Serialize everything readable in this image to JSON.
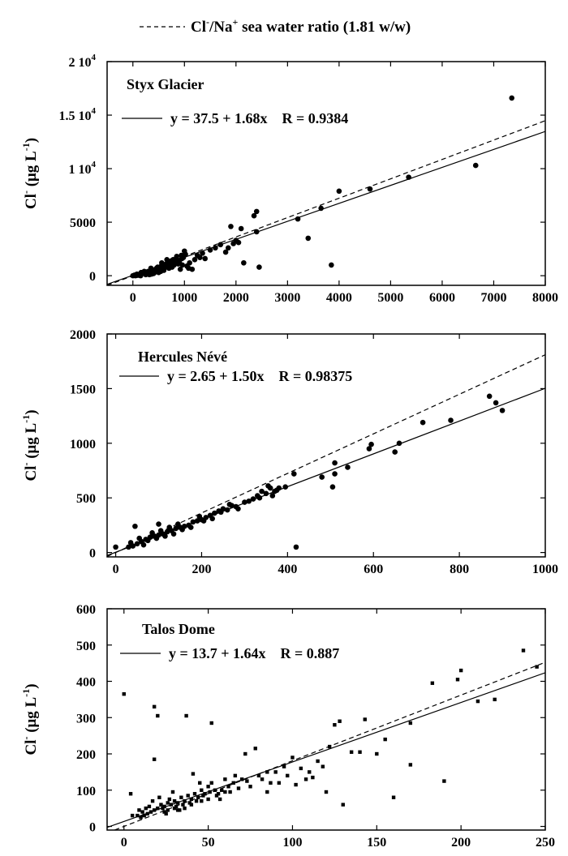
{
  "legend_top": {
    "label_cl": "Cl",
    "label_cl_sup": "-",
    "label_na": "/Na",
    "label_na_sup": "+",
    "label_rest": " sea water ratio (1.81 w/w)"
  },
  "chart_data": [
    {
      "type": "scatter",
      "title": "Styx Glacier",
      "ylabel_main": "Cl",
      "ylabel_sup1": "-",
      "ylabel_units": " (μg L",
      "ylabel_sup2": "-1",
      "ylabel_close": ")",
      "fit_text": "y = 37.5 + 1.68x    R = 0.9384",
      "fit": {
        "intercept": 37.5,
        "slope": 1.68
      },
      "seawater_slope": 1.81,
      "xlim": [
        -500,
        8000
      ],
      "ylim": [
        -900,
        20000
      ],
      "xticks": [
        0,
        1000,
        2000,
        3000,
        4000,
        5000,
        6000,
        7000,
        8000
      ],
      "xtick_labels": [
        "0",
        "1000",
        "2000",
        "3000",
        "4000",
        "5000",
        "6000",
        "7000",
        "8000"
      ],
      "yticks": [
        0,
        5000,
        10000,
        15000,
        20000
      ],
      "ytick_labels": [
        "0",
        "5000",
        "1 10",
        "1.5 10",
        "2 10"
      ],
      "ytick_sup": [
        "",
        "",
        "4",
        "4",
        "4"
      ],
      "points": [
        [
          7350,
          16600
        ],
        [
          6650,
          10300
        ],
        [
          5350,
          9200
        ],
        [
          4600,
          8100
        ],
        [
          4000,
          7900
        ],
        [
          3650,
          6300
        ],
        [
          3200,
          5300
        ],
        [
          3400,
          3500
        ],
        [
          3850,
          1000
        ],
        [
          2400,
          6000
        ],
        [
          2350,
          5600
        ],
        [
          2400,
          4100
        ],
        [
          2100,
          4400
        ],
        [
          1900,
          4600
        ],
        [
          2000,
          3300
        ],
        [
          1950,
          3000
        ],
        [
          1800,
          2200
        ],
        [
          2450,
          800
        ],
        [
          2150,
          1200
        ],
        [
          1700,
          2900
        ],
        [
          1500,
          2400
        ],
        [
          1350,
          2100
        ],
        [
          1300,
          1700
        ],
        [
          1200,
          1500
        ],
        [
          1100,
          1200
        ],
        [
          1050,
          900
        ],
        [
          1000,
          2300
        ],
        [
          950,
          1600
        ],
        [
          900,
          1300
        ],
        [
          850,
          1800
        ],
        [
          800,
          1000
        ],
        [
          750,
          1400
        ],
        [
          700,
          700
        ],
        [
          650,
          1100
        ],
        [
          600,
          500
        ],
        [
          550,
          900
        ],
        [
          500,
          300
        ],
        [
          450,
          600
        ],
        [
          400,
          200
        ],
        [
          350,
          700
        ],
        [
          300,
          400
        ],
        [
          250,
          100
        ],
        [
          200,
          300
        ],
        [
          150,
          0
        ],
        [
          100,
          100
        ],
        [
          50,
          0
        ],
        [
          80,
          150
        ],
        [
          120,
          50
        ],
        [
          180,
          200
        ],
        [
          220,
          400
        ],
        [
          280,
          250
        ],
        [
          320,
          100
        ],
        [
          380,
          500
        ],
        [
          420,
          300
        ],
        [
          480,
          800
        ],
        [
          520,
          600
        ],
        [
          580,
          1000
        ],
        [
          620,
          750
        ],
        [
          680,
          1250
        ],
        [
          720,
          900
        ],
        [
          780,
          1500
        ],
        [
          820,
          1300
        ],
        [
          880,
          1100
        ],
        [
          920,
          600
        ],
        [
          980,
          1700
        ],
        [
          1020,
          2000
        ],
        [
          1080,
          700
        ],
        [
          1150,
          600
        ],
        [
          1250,
          1900
        ],
        [
          1400,
          1600
        ],
        [
          0,
          0
        ],
        [
          30,
          50
        ],
        [
          60,
          80
        ],
        [
          90,
          40
        ],
        [
          140,
          120
        ],
        [
          160,
          300
        ],
        [
          240,
          180
        ],
        [
          260,
          350
        ],
        [
          340,
          300
        ],
        [
          360,
          150
        ],
        [
          440,
          450
        ],
        [
          460,
          700
        ],
        [
          540,
          400
        ],
        [
          560,
          1200
        ],
        [
          640,
          900
        ],
        [
          660,
          1500
        ],
        [
          740,
          1100
        ],
        [
          760,
          800
        ],
        [
          840,
          1600
        ],
        [
          860,
          1400
        ],
        [
          940,
          1900
        ],
        [
          960,
          1000
        ],
        [
          1600,
          2600
        ],
        [
          1850,
          2600
        ],
        [
          2050,
          3100
        ]
      ]
    },
    {
      "type": "scatter",
      "title": "Hercules Névé",
      "ylabel_main": "Cl",
      "ylabel_sup1": "-",
      "ylabel_units": " (μg L",
      "ylabel_sup2": "-1",
      "ylabel_close": ")",
      "fit_text": "y = 2.65 + 1.50x    R = 0.98375",
      "fit": {
        "intercept": 2.65,
        "slope": 1.5
      },
      "seawater_slope": 1.81,
      "xlim": [
        -20,
        1000
      ],
      "ylim": [
        -40,
        2000
      ],
      "xticks": [
        0,
        200,
        400,
        600,
        800,
        1000
      ],
      "xtick_labels": [
        "0",
        "200",
        "400",
        "600",
        "800",
        "1000"
      ],
      "yticks": [
        0,
        500,
        1000,
        1500,
        2000
      ],
      "ytick_labels": [
        "0",
        "500",
        "1000",
        "1500",
        "2000"
      ],
      "ytick_sup": [
        "",
        "",
        "",
        "",
        ""
      ],
      "points": [
        [
          870,
          1430
        ],
        [
          885,
          1370
        ],
        [
          900,
          1300
        ],
        [
          780,
          1210
        ],
        [
          715,
          1190
        ],
        [
          660,
          1000
        ],
        [
          650,
          920
        ],
        [
          595,
          990
        ],
        [
          590,
          950
        ],
        [
          540,
          780
        ],
        [
          510,
          820
        ],
        [
          510,
          720
        ],
        [
          505,
          600
        ],
        [
          480,
          690
        ],
        [
          415,
          720
        ],
        [
          395,
          600
        ],
        [
          380,
          590
        ],
        [
          370,
          560
        ],
        [
          360,
          590
        ],
        [
          350,
          540
        ],
        [
          340,
          560
        ],
        [
          330,
          520
        ],
        [
          320,
          490
        ],
        [
          300,
          460
        ],
        [
          280,
          420
        ],
        [
          270,
          430
        ],
        [
          260,
          390
        ],
        [
          250,
          400
        ],
        [
          240,
          380
        ],
        [
          230,
          360
        ],
        [
          220,
          340
        ],
        [
          210,
          320
        ],
        [
          200,
          300
        ],
        [
          190,
          290
        ],
        [
          180,
          280
        ],
        [
          170,
          250
        ],
        [
          160,
          240
        ],
        [
          150,
          230
        ],
        [
          140,
          220
        ],
        [
          130,
          200
        ],
        [
          120,
          190
        ],
        [
          110,
          170
        ],
        [
          100,
          160
        ],
        [
          90,
          150
        ],
        [
          80,
          140
        ],
        [
          70,
          120
        ],
        [
          60,
          100
        ],
        [
          50,
          80
        ],
        [
          40,
          60
        ],
        [
          30,
          50
        ],
        [
          45,
          240
        ],
        [
          100,
          260
        ],
        [
          420,
          50
        ],
        [
          0,
          50
        ],
        [
          35,
          90
        ],
        [
          55,
          130
        ],
        [
          65,
          70
        ],
        [
          75,
          110
        ],
        [
          85,
          180
        ],
        [
          95,
          130
        ],
        [
          105,
          200
        ],
        [
          115,
          150
        ],
        [
          125,
          230
        ],
        [
          135,
          170
        ],
        [
          145,
          260
        ],
        [
          155,
          210
        ],
        [
          175,
          230
        ],
        [
          195,
          330
        ],
        [
          205,
          290
        ],
        [
          225,
          310
        ],
        [
          245,
          370
        ],
        [
          265,
          440
        ],
        [
          285,
          400
        ],
        [
          310,
          470
        ],
        [
          335,
          500
        ],
        [
          355,
          610
        ],
        [
          365,
          520
        ],
        [
          375,
          570
        ]
      ]
    },
    {
      "type": "scatter",
      "title": "Talos Dome",
      "ylabel_main": "Cl",
      "ylabel_sup1": "-",
      "ylabel_units": " (μg L",
      "ylabel_sup2": "-1",
      "ylabel_close": ")",
      "fit_text": "y = 13.7 + 1.64x    R = 0.887",
      "fit": {
        "intercept": 13.7,
        "slope": 1.64
      },
      "seawater_slope": 1.81,
      "xlim": [
        -10,
        250
      ],
      "ylim": [
        -10,
        600
      ],
      "xticks": [
        0,
        50,
        100,
        150,
        200,
        250
      ],
      "xtick_labels": [
        "0",
        "50",
        "100",
        "150",
        "200",
        "250"
      ],
      "yticks": [
        0,
        100,
        200,
        300,
        400,
        500,
        600
      ],
      "ytick_labels": [
        "0",
        "100",
        "200",
        "300",
        "400",
        "500",
        "600"
      ],
      "ytick_sup": [
        "",
        "",
        "",
        "",
        "",
        "",
        ""
      ],
      "points": [
        [
          237,
          485
        ],
        [
          245,
          440
        ],
        [
          200,
          430
        ],
        [
          198,
          405
        ],
        [
          220,
          350
        ],
        [
          210,
          345
        ],
        [
          183,
          395
        ],
        [
          170,
          285
        ],
        [
          155,
          240
        ],
        [
          150,
          200
        ],
        [
          143,
          295
        ],
        [
          140,
          205
        ],
        [
          135,
          205
        ],
        [
          128,
          290
        ],
        [
          125,
          280
        ],
        [
          122,
          220
        ],
        [
          118,
          165
        ],
        [
          115,
          180
        ],
        [
          110,
          150
        ],
        [
          105,
          160
        ],
        [
          100,
          190
        ],
        [
          95,
          165
        ],
        [
          90,
          150
        ],
        [
          87,
          120
        ],
        [
          85,
          150
        ],
        [
          80,
          140
        ],
        [
          78,
          215
        ],
        [
          75,
          110
        ],
        [
          72,
          200
        ],
        [
          70,
          130
        ],
        [
          65,
          120
        ],
        [
          62,
          110
        ],
        [
          60,
          130
        ],
        [
          58,
          100
        ],
        [
          55,
          85
        ],
        [
          52,
          120
        ],
        [
          50,
          110
        ],
        [
          48,
          90
        ],
        [
          46,
          100
        ],
        [
          44,
          80
        ],
        [
          42,
          90
        ],
        [
          40,
          75
        ],
        [
          38,
          85
        ],
        [
          36,
          70
        ],
        [
          34,
          80
        ],
        [
          32,
          65
        ],
        [
          30,
          70
        ],
        [
          28,
          60
        ],
        [
          26,
          65
        ],
        [
          24,
          55
        ],
        [
          22,
          60
        ],
        [
          20,
          50
        ],
        [
          18,
          45
        ],
        [
          16,
          40
        ],
        [
          14,
          35
        ],
        [
          12,
          30
        ],
        [
          10,
          25
        ],
        [
          0,
          365
        ],
        [
          18,
          330
        ],
        [
          20,
          305
        ],
        [
          37,
          305
        ],
        [
          18,
          185
        ],
        [
          52,
          285
        ],
        [
          4,
          90
        ],
        [
          5,
          30
        ],
        [
          120,
          95
        ],
        [
          160,
          80
        ],
        [
          190,
          125
        ],
        [
          130,
          60
        ],
        [
          170,
          170
        ],
        [
          112,
          135
        ],
        [
          97,
          140
        ],
        [
          85,
          95
        ],
        [
          66,
          140
        ],
        [
          57,
          75
        ],
        [
          45,
          120
        ],
        [
          41,
          145
        ],
        [
          33,
          45
        ],
        [
          29,
          95
        ],
        [
          25,
          35
        ],
        [
          21,
          80
        ],
        [
          17,
          70
        ],
        [
          15,
          55
        ],
        [
          13,
          50
        ],
        [
          11,
          40
        ],
        [
          23,
          50
        ],
        [
          27,
          75
        ],
        [
          31,
          55
        ],
        [
          35,
          60
        ],
        [
          39,
          65
        ],
        [
          43,
          70
        ],
        [
          47,
          85
        ],
        [
          51,
          95
        ],
        [
          54,
          100
        ],
        [
          63,
          95
        ],
        [
          68,
          105
        ],
        [
          73,
          125
        ],
        [
          82,
          130
        ],
        [
          92,
          120
        ],
        [
          102,
          115
        ],
        [
          108,
          130
        ],
        [
          8,
          30
        ],
        [
          9,
          45
        ],
        [
          24,
          40
        ],
        [
          26,
          45
        ],
        [
          30,
          50
        ],
        [
          32,
          45
        ],
        [
          36,
          50
        ],
        [
          40,
          60
        ],
        [
          46,
          70
        ],
        [
          50,
          75
        ],
        [
          56,
          90
        ],
        [
          60,
          95
        ]
      ]
    }
  ]
}
